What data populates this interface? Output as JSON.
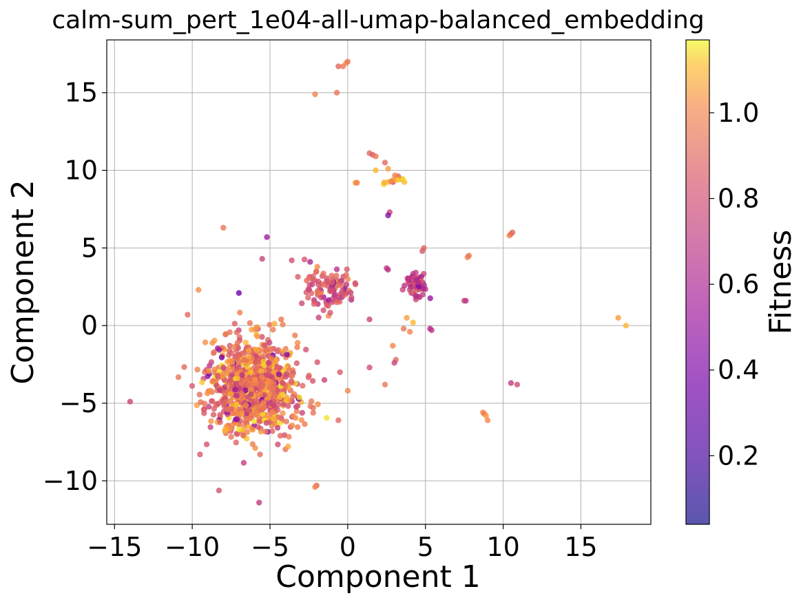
{
  "chart_data": {
    "type": "scatter",
    "title": "calm-sum_pert_1e04-all-umap-balanced_embedding",
    "xlabel": "Component 1",
    "ylabel": "Component 2",
    "xlim": [
      -15.5,
      19.5
    ],
    "ylim": [
      -12.8,
      18.4
    ],
    "xticks": [
      -15,
      -10,
      -5,
      0,
      5,
      10,
      15
    ],
    "xtick_labels": [
      "−15",
      "−10",
      "−5",
      "0",
      "5",
      "10",
      "15"
    ],
    "yticks": [
      -10,
      -5,
      0,
      5,
      10,
      15
    ],
    "ytick_labels": [
      "−10",
      "−5",
      "0",
      "5",
      "10",
      "15"
    ],
    "grid": true,
    "colorbar": {
      "label": "Fitness",
      "colormap": "plasma",
      "range": [
        0.04,
        1.17
      ],
      "ticks": [
        0.2,
        0.4,
        0.6,
        0.8,
        1.0
      ],
      "tick_labels": [
        "0.2",
        "0.4",
        "0.6",
        "0.8",
        "1.0"
      ]
    },
    "clusters": [
      {
        "center": [
          -6.0,
          -4.0
        ],
        "spread": [
          1.4,
          1.6
        ],
        "count": 900,
        "fitness_mean": 0.93
      },
      {
        "center": [
          -1.2,
          2.4
        ],
        "spread": [
          0.9,
          0.7
        ],
        "count": 110,
        "fitness_mean": 0.8
      },
      {
        "center": [
          4.4,
          2.6
        ],
        "spread": [
          0.35,
          0.45
        ],
        "count": 70,
        "fitness_mean": 0.72
      },
      {
        "center": [
          3.2,
          9.4
        ],
        "spread": [
          0.5,
          0.2
        ],
        "count": 14,
        "fitness_mean": 1.02
      }
    ],
    "points": [
      {
        "x": -14.0,
        "y": -4.9,
        "f": 0.75
      },
      {
        "x": -10.3,
        "y": 0.7,
        "f": 0.9
      },
      {
        "x": -9.6,
        "y": 2.3,
        "f": 1.02
      },
      {
        "x": -9.5,
        "y": -8.3,
        "f": 0.85
      },
      {
        "x": -8.0,
        "y": 6.3,
        "f": 0.95
      },
      {
        "x": -7.0,
        "y": 2.1,
        "f": 0.35
      },
      {
        "x": -5.7,
        "y": -11.4,
        "f": 0.7
      },
      {
        "x": -5.2,
        "y": 5.7,
        "f": 0.55
      },
      {
        "x": -5.5,
        "y": 4.3,
        "f": 0.75
      },
      {
        "x": -3.6,
        "y": 4.2,
        "f": 0.8
      },
      {
        "x": -2.1,
        "y": 14.9,
        "f": 1.0
      },
      {
        "x": -0.7,
        "y": 15.0,
        "f": 0.95
      },
      {
        "x": -0.6,
        "y": 16.7,
        "f": 0.9
      },
      {
        "x": -0.3,
        "y": 16.7,
        "f": 0.95
      },
      {
        "x": -0.1,
        "y": 16.9,
        "f": 1.0
      },
      {
        "x": 0.0,
        "y": 17.0,
        "f": 0.95
      },
      {
        "x": -2.0,
        "y": -10.3,
        "f": 0.9
      },
      {
        "x": -2.1,
        "y": -10.4,
        "f": 1.0
      },
      {
        "x": 0.5,
        "y": 9.2,
        "f": 1.05
      },
      {
        "x": 0.6,
        "y": 9.2,
        "f": 0.98
      },
      {
        "x": 1.4,
        "y": 11.1,
        "f": 0.9
      },
      {
        "x": 1.6,
        "y": 11.0,
        "f": 0.85
      },
      {
        "x": 1.8,
        "y": 10.9,
        "f": 0.95
      },
      {
        "x": 2.4,
        "y": 10.5,
        "f": 0.9
      },
      {
        "x": 2.6,
        "y": 10.1,
        "f": 1.05
      },
      {
        "x": 1.8,
        "y": 10.0,
        "f": 1.1
      },
      {
        "x": 2.7,
        "y": 7.3,
        "f": 0.75
      },
      {
        "x": 2.6,
        "y": 7.1,
        "f": 0.45
      },
      {
        "x": 1.4,
        "y": 0.4,
        "f": 0.75
      },
      {
        "x": 1.4,
        "y": -2.7,
        "f": 0.8
      },
      {
        "x": 2.4,
        "y": -3.8,
        "f": 0.95
      },
      {
        "x": 3.1,
        "y": -2.2,
        "f": 0.9
      },
      {
        "x": 2.9,
        "y": -1.3,
        "f": 1.0
      },
      {
        "x": 3.0,
        "y": -2.4,
        "f": 0.75
      },
      {
        "x": 2.5,
        "y": 3.7,
        "f": 0.7
      },
      {
        "x": 2.6,
        "y": 3.6,
        "f": 0.65
      },
      {
        "x": 5.3,
        "y": -0.2,
        "f": 0.6
      },
      {
        "x": 5.4,
        "y": -0.3,
        "f": 0.7
      },
      {
        "x": 4.9,
        "y": 5.0,
        "f": 0.9
      },
      {
        "x": 4.8,
        "y": 4.8,
        "f": 0.85
      },
      {
        "x": 7.7,
        "y": 4.4,
        "f": 1.0
      },
      {
        "x": 7.8,
        "y": 4.5,
        "f": 0.95
      },
      {
        "x": 7.5,
        "y": 1.6,
        "f": 0.75
      },
      {
        "x": 7.6,
        "y": 1.6,
        "f": 0.7
      },
      {
        "x": 10.4,
        "y": 5.8,
        "f": 1.0
      },
      {
        "x": 10.5,
        "y": 5.9,
        "f": 0.95
      },
      {
        "x": 10.6,
        "y": 6.0,
        "f": 0.9
      },
      {
        "x": 10.5,
        "y": -3.7,
        "f": 0.7
      },
      {
        "x": 10.9,
        "y": -3.8,
        "f": 0.8
      },
      {
        "x": 8.7,
        "y": -5.6,
        "f": 1.0
      },
      {
        "x": 8.8,
        "y": -5.7,
        "f": 0.95
      },
      {
        "x": 8.9,
        "y": -5.8,
        "f": 1.05
      },
      {
        "x": 9.0,
        "y": -6.1,
        "f": 1.0
      },
      {
        "x": 17.4,
        "y": 0.5,
        "f": 1.05
      },
      {
        "x": 17.9,
        "y": 0.0,
        "f": 1.1
      },
      {
        "x": 0.0,
        "y": -4.2,
        "f": 1.0
      },
      {
        "x": -0.6,
        "y": -6.1,
        "f": 0.9
      },
      {
        "x": -0.5,
        "y": -3.0,
        "f": 0.85
      },
      {
        "x": -1.5,
        "y": -3.5,
        "f": 0.75
      },
      {
        "x": 4.0,
        "y": -0.4,
        "f": 1.0
      },
      {
        "x": 3.8,
        "y": 0.5,
        "f": 1.05
      },
      {
        "x": 3.6,
        "y": -0.2,
        "f": 0.95
      },
      {
        "x": 4.2,
        "y": 0.2,
        "f": 1.1
      }
    ]
  }
}
